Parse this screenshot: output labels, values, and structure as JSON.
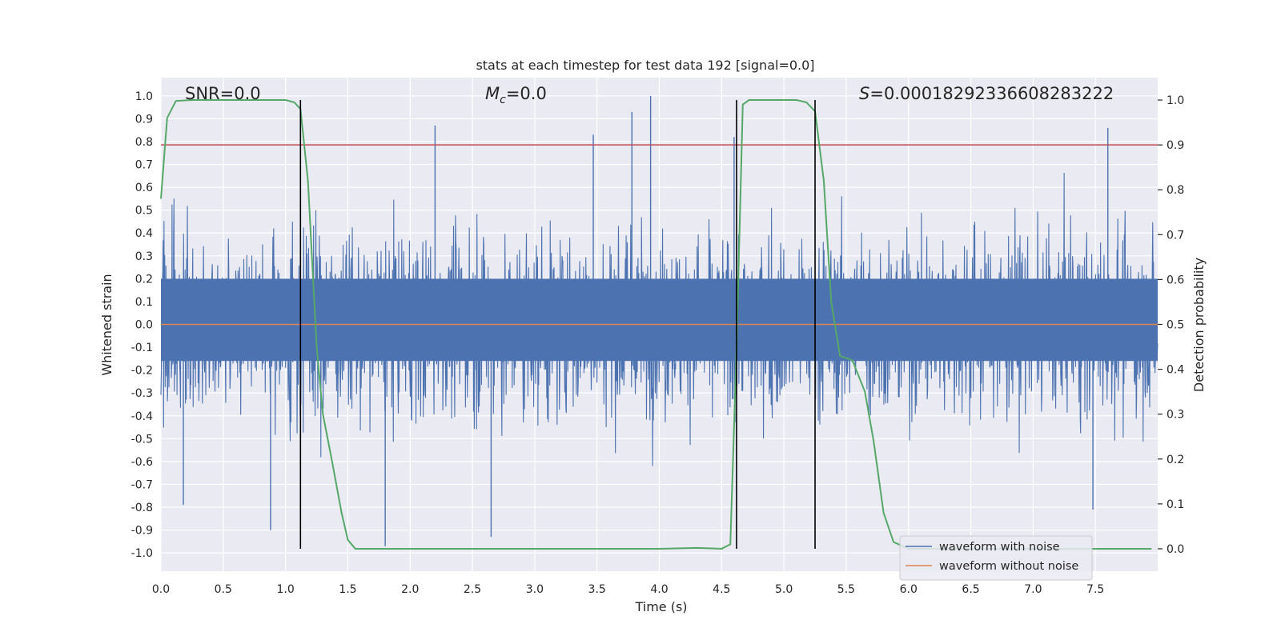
{
  "chart_data": {
    "type": "line",
    "title": "stats at each timestep for test data 192 [signal=0.0]",
    "xlabel": "Time (s)",
    "ylabel": "Whitened strain",
    "y2label": "Detection probability",
    "xlim": [
      0.0,
      8.0
    ],
    "ylim": [
      -1.08,
      1.08
    ],
    "y2lim": [
      -0.05,
      1.05
    ],
    "x_ticks": [
      0.0,
      0.5,
      1.0,
      1.5,
      2.0,
      2.5,
      3.0,
      3.5,
      4.0,
      4.5,
      5.0,
      5.5,
      6.0,
      6.5,
      7.0,
      7.5
    ],
    "x_tick_labels": [
      "0.0",
      "0.5",
      "1.0",
      "1.5",
      "2.0",
      "2.5",
      "3.0",
      "3.5",
      "4.0",
      "4.5",
      "5.0",
      "5.5",
      "6.0",
      "6.5",
      "7.0",
      "7.5"
    ],
    "y_ticks": [
      1.0,
      0.9,
      0.8,
      0.7,
      0.6,
      0.5,
      0.4,
      0.3,
      0.2,
      0.1,
      0.0,
      -0.1,
      -0.2,
      -0.3,
      -0.4,
      -0.5,
      -0.6,
      -0.7,
      -0.8,
      -0.9,
      -1.0
    ],
    "y_tick_labels": [
      "1.0",
      "0.9",
      "0.8",
      "0.7",
      "0.6",
      "0.5",
      "0.4",
      "0.3",
      "0.2",
      "0.1",
      "0.0",
      "-0.1",
      "-0.2",
      "-0.3",
      "-0.4",
      "-0.5",
      "-0.6",
      "-0.7",
      "-0.8",
      "-0.9",
      "-1.0"
    ],
    "y2_ticks": [
      1.0,
      0.9,
      0.8,
      0.7,
      0.6,
      0.5,
      0.4,
      0.3,
      0.2,
      0.1,
      0.0
    ],
    "y2_tick_labels": [
      "1.0",
      "0.9",
      "0.8",
      "0.7",
      "0.6",
      "0.5",
      "0.4",
      "0.3",
      "0.2",
      "0.1",
      "0.0"
    ],
    "grid": true,
    "legend_position": "lower-right",
    "annotations": {
      "snr": "SNR=0.0",
      "mc_symbol": "M",
      "mc_subscript": "c",
      "mc_value": "=0.0",
      "s_symbol": "S",
      "s_value": "=0.00018292336608283222"
    },
    "threshold_y2": 0.9,
    "vertical_lines_x": [
      1.12,
      4.62,
      5.25
    ],
    "series": [
      {
        "name": "waveform with noise",
        "color": "#4c72b0",
        "samples": 8192,
        "typical_amplitude": 0.38,
        "peak_samples": [
          {
            "x": 2.2,
            "y": 0.87
          },
          {
            "x": 3.47,
            "y": 0.83
          },
          {
            "x": 3.93,
            "y": 1.0
          },
          {
            "x": 3.78,
            "y": 0.93
          },
          {
            "x": 4.6,
            "y": 0.82
          },
          {
            "x": 7.6,
            "y": 0.86
          },
          {
            "x": 1.8,
            "y": -0.97
          },
          {
            "x": 2.65,
            "y": -0.93
          },
          {
            "x": 0.88,
            "y": -0.9
          },
          {
            "x": 0.18,
            "y": -0.79
          },
          {
            "x": 7.48,
            "y": -0.81
          }
        ]
      },
      {
        "name": "waveform without noise",
        "color": "#dd8452",
        "x": [
          0.0,
          8.0
        ],
        "y": [
          0.0,
          0.0
        ]
      },
      {
        "name": "detection probability",
        "color": "#55a868",
        "axis": "right",
        "x": [
          0.0,
          0.05,
          0.12,
          0.25,
          0.5,
          0.75,
          1.0,
          1.07,
          1.12,
          1.18,
          1.25,
          1.3,
          1.37,
          1.45,
          1.5,
          1.56,
          2.0,
          3.0,
          4.0,
          4.3,
          4.5,
          4.57,
          4.62,
          4.67,
          4.72,
          4.9,
          5.1,
          5.18,
          5.25,
          5.32,
          5.38,
          5.45,
          5.55,
          5.65,
          5.72,
          5.8,
          5.88,
          6.0,
          7.0,
          7.95
        ],
        "y": [
          0.78,
          0.96,
          0.998,
          1.0,
          1.0,
          1.0,
          1.0,
          0.995,
          0.98,
          0.82,
          0.45,
          0.3,
          0.2,
          0.08,
          0.02,
          0.0,
          0.0,
          0.0,
          0.0,
          0.002,
          0.0,
          0.01,
          0.45,
          0.99,
          1.0,
          1.0,
          1.0,
          0.995,
          0.975,
          0.82,
          0.55,
          0.43,
          0.42,
          0.35,
          0.24,
          0.08,
          0.015,
          0.0,
          0.0,
          0.0
        ]
      }
    ]
  }
}
